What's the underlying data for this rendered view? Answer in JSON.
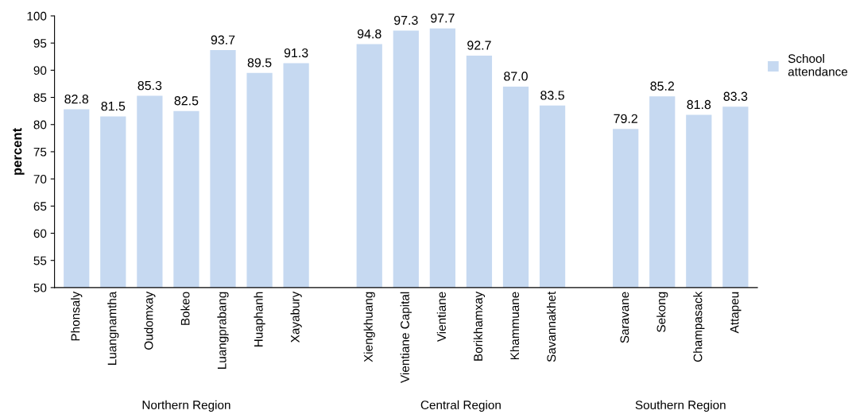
{
  "chart_data": {
    "type": "bar",
    "ylabel": "percent",
    "categories": [
      "Phonsaly",
      "Luangnamtha",
      "Oudomxay",
      "Bokeo",
      "Luangprabang",
      "Huaphanh",
      "Xayabury",
      null,
      "Xiengkhuang",
      "Vientiane Capital",
      "Vientiane",
      "Borikhamxay",
      "Khammuane",
      "Savannakhet",
      null,
      "Saravane",
      "Sekong",
      "Champasack",
      "Attapeu"
    ],
    "series": [
      {
        "name": "School attendance",
        "color": "#c6d9f1",
        "values": [
          82.8,
          81.5,
          85.3,
          82.5,
          93.7,
          89.5,
          91.3,
          null,
          94.8,
          97.3,
          97.7,
          92.7,
          87.0,
          83.5,
          null,
          79.2,
          85.2,
          81.8,
          83.3
        ],
        "value_labels": [
          "82.8",
          "81.5",
          "85.3",
          "82.5",
          "93.7",
          "89.5",
          "91.3",
          null,
          "94.8",
          "97.3",
          "97.7",
          "92.7",
          "87.0",
          "83.5",
          null,
          "79.2",
          "85.2",
          "81.8",
          "83.3"
        ]
      }
    ],
    "annotations": [
      "Northern Region",
      "Central Region",
      "Southern Region"
    ],
    "ylim": [
      50,
      100
    ],
    "yticks": [
      50,
      55,
      60,
      65,
      70,
      75,
      80,
      85,
      90,
      95,
      100
    ],
    "grid": false,
    "legend": "right"
  }
}
